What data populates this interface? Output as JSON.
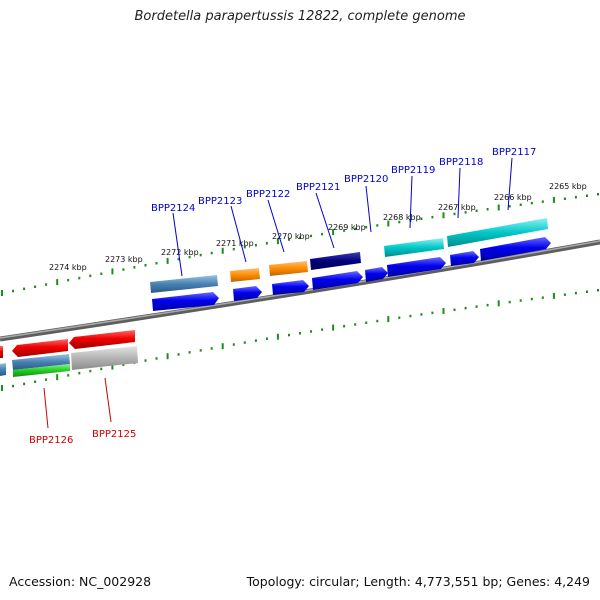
{
  "header": {
    "title": "Bordetella parapertussis 12822, complete genome"
  },
  "footer": {
    "accession": "Accession: NC_002928",
    "summary": "Topology: circular; Length: 4,773,551 bp; Genes: 4,249"
  },
  "scale_labels": [
    "2274 kbp",
    "2273 kbp",
    "2272 kbp",
    "2271 kbp",
    "2270 kbp",
    "2269 kbp",
    "2268 kbp",
    "2267 kbp",
    "2266 kbp",
    "2265 kbp"
  ],
  "gene_labels": [
    {
      "text": "BPP2124",
      "color": "#0000cc"
    },
    {
      "text": "BPP2123",
      "color": "#0000cc"
    },
    {
      "text": "BPP2122",
      "color": "#0000cc"
    },
    {
      "text": "BPP2121",
      "color": "#0000cc"
    },
    {
      "text": "BPP2120",
      "color": "#0000cc"
    },
    {
      "text": "BPP2119",
      "color": "#0000cc"
    },
    {
      "text": "BPP2118",
      "color": "#0000cc"
    },
    {
      "text": "BPP2117",
      "color": "#0000cc"
    },
    {
      "text": "BPP2126",
      "color": "#cc0000"
    },
    {
      "text": "BPP2125",
      "color": "#cc0000"
    }
  ],
  "colors": {
    "backbone": "#7a7a7a",
    "tick": "#1e8c1e",
    "forward_cds": "#0000ee",
    "reverse_cds": "#ee0000",
    "steelblue": "#4682b4",
    "orange": "#ff8c00",
    "navy": "#000080",
    "teal": "#00c8c8",
    "green": "#22cc22",
    "grey": "#b4b4b4"
  }
}
